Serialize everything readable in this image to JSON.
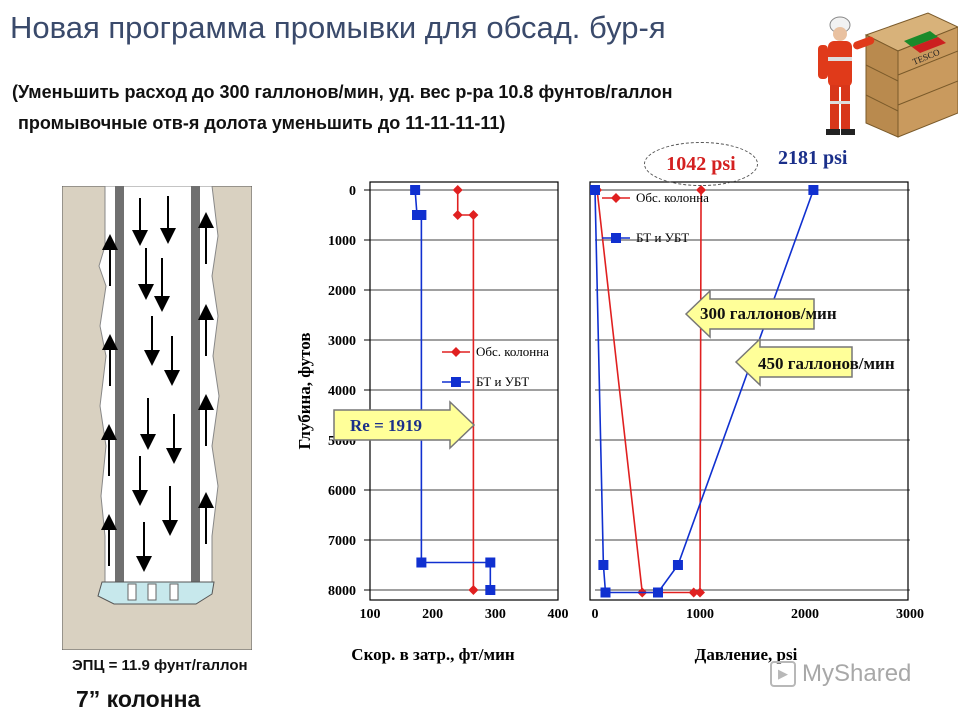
{
  "title": "Новая программа промывки для обсад. бур-я",
  "subtitle_line1": "(Уменьшить расход до 300 галлонов/мин, уд. вес р-ра 10.8 фунтов/галлон",
  "subtitle_line2": "промывочные отв-я долота уменьшить до 11-11-11-11)",
  "psi_callout_1": "1042 psi",
  "psi_callout_2": "2181 psi",
  "epc_label": "ЭПЦ = 11.9 фунт/галлон",
  "casing_label": "7” колонна",
  "watermark": "MyShared",
  "logo_text": "TESCO",
  "colors": {
    "red_series": "#e02020",
    "blue_series": "#1030d0",
    "arrow_fill": "#ffff99",
    "title": "#3a4a6b"
  },
  "chart_data": [
    {
      "type": "line",
      "xlabel": "Скор. в затр., фт/мин",
      "ylabel": "Глубина, футов",
      "xlim": [
        100,
        400
      ],
      "ylim": [
        8000,
        0
      ],
      "x_ticks": [
        "100",
        "200",
        "300",
        "400"
      ],
      "y_ticks": [
        "0",
        "1000",
        "2000",
        "3000",
        "4000",
        "5000",
        "6000",
        "7000",
        "8000"
      ],
      "grid": "horizontal",
      "legend_position": "center-right",
      "series": [
        {
          "name": "Обс. колонна",
          "color": "#e02020",
          "marker": "diamond",
          "points": [
            [
              240,
              0
            ],
            [
              240,
              500
            ],
            [
              265,
              500
            ],
            [
              265,
              8000
            ]
          ]
        },
        {
          "name": "БТ и УБТ",
          "color": "#1030d0",
          "marker": "square",
          "points": [
            [
              172,
              0
            ],
            [
              175,
              500
            ],
            [
              182,
              500
            ],
            [
              182,
              7450
            ],
            [
              292,
              7450
            ],
            [
              292,
              8000
            ]
          ]
        }
      ],
      "annotation": "Re = 1919"
    },
    {
      "type": "line",
      "xlabel": "Давление, psi",
      "ylabel": "",
      "xlim": [
        0,
        3000
      ],
      "ylim": [
        8000,
        0
      ],
      "x_ticks": [
        "0",
        "1000",
        "2000",
        "3000"
      ],
      "grid": "horizontal",
      "legend_position": "top-left",
      "series": [
        {
          "name": "Обс. колонна",
          "color": "#e02020",
          "marker": "diamond",
          "points": [
            [
              20,
              0
            ],
            [
              450,
              8050
            ],
            [
              940,
              8050
            ],
            [
              1000,
              8050
            ],
            [
              1010,
              0
            ]
          ]
        },
        {
          "name": "БТ и УБТ",
          "color": "#1030d0",
          "marker": "square",
          "points": [
            [
              0,
              0
            ],
            [
              80,
              7500
            ],
            [
              100,
              8050
            ],
            [
              600,
              8050
            ],
            [
              790,
              7500
            ],
            [
              2080,
              0
            ]
          ]
        }
      ],
      "annotations": [
        "300 галлонов/мин",
        "450 галлонов/мин"
      ]
    }
  ]
}
